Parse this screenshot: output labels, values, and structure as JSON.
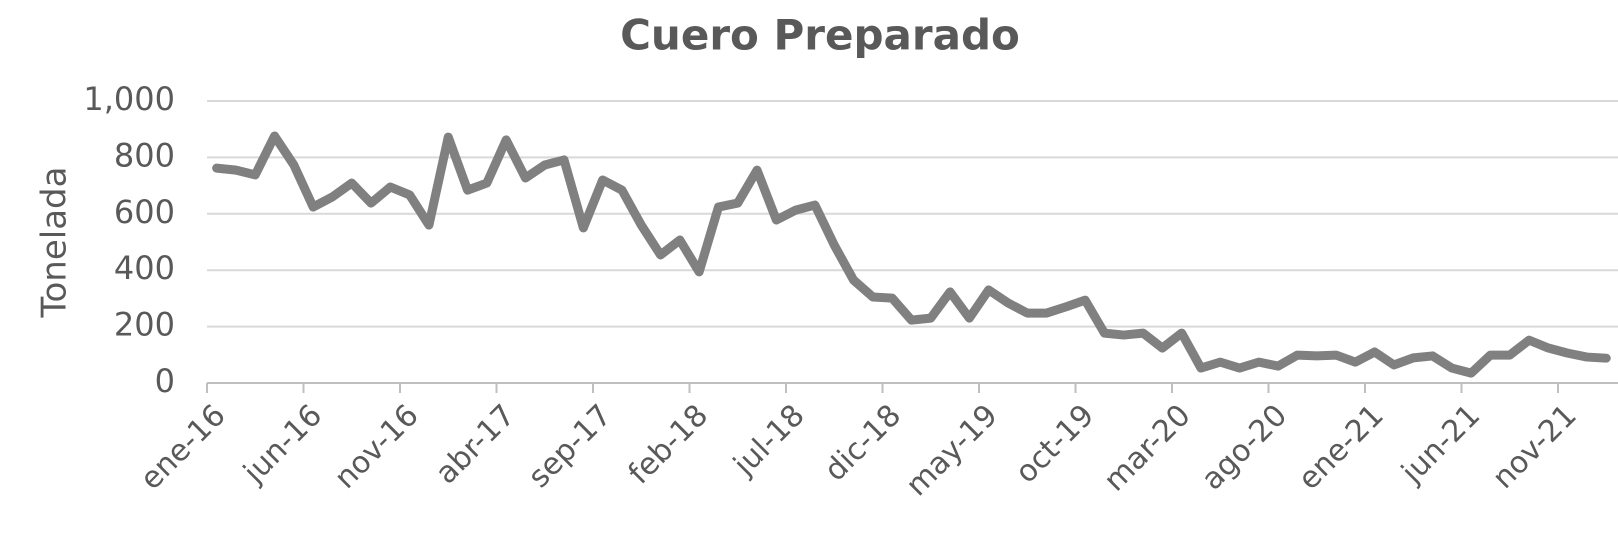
{
  "chart_data": {
    "type": "line",
    "title": "Cuero Preparado",
    "y_label": "Tonelada",
    "categories": [
      "ene-16",
      null,
      null,
      null,
      null,
      "jun-16",
      null,
      null,
      null,
      null,
      "nov-16",
      null,
      null,
      null,
      null,
      "abr-17",
      null,
      null,
      null,
      null,
      "sep-17",
      null,
      null,
      null,
      null,
      "feb-18",
      null,
      null,
      null,
      null,
      "jul-18",
      null,
      null,
      null,
      null,
      "dic-18",
      null,
      null,
      null,
      null,
      "may-19",
      null,
      null,
      null,
      null,
      "oct-19",
      null,
      null,
      null,
      null,
      "mar-20",
      null,
      null,
      null,
      null,
      "ago-20",
      null,
      null,
      null,
      null,
      "ene-21",
      null,
      null,
      null,
      null,
      "jun-21",
      null,
      null,
      null,
      null,
      "nov-21",
      null,
      null
    ],
    "series": [
      {
        "name": "Cuero Preparado",
        "color": "#808080",
        "values": [
          762,
          755,
          738,
          876,
          773,
          624,
          660,
          709,
          638,
          695,
          667,
          560,
          872,
          684,
          709,
          862,
          727,
          773,
          791,
          550,
          720,
          684,
          560,
          454,
          507,
          394,
          624,
          638,
          755,
          578,
          613,
          631,
          489,
          365,
          305,
          301,
          223,
          230,
          323,
          230,
          330,
          284,
          248,
          248,
          270,
          294,
          177,
          170,
          177,
          124,
          177,
          53,
          74,
          53,
          74,
          60,
          99,
          96,
          99,
          74,
          110,
          64,
          89,
          96,
          53,
          35,
          99,
          99,
          152,
          124,
          106,
          92,
          88
        ]
      }
    ],
    "ylim": [
      0,
      1000
    ],
    "yticks": [
      0,
      200,
      400,
      600,
      800,
      {
        "value": 1000,
        "label": "1,000"
      }
    ],
    "grid": true
  }
}
